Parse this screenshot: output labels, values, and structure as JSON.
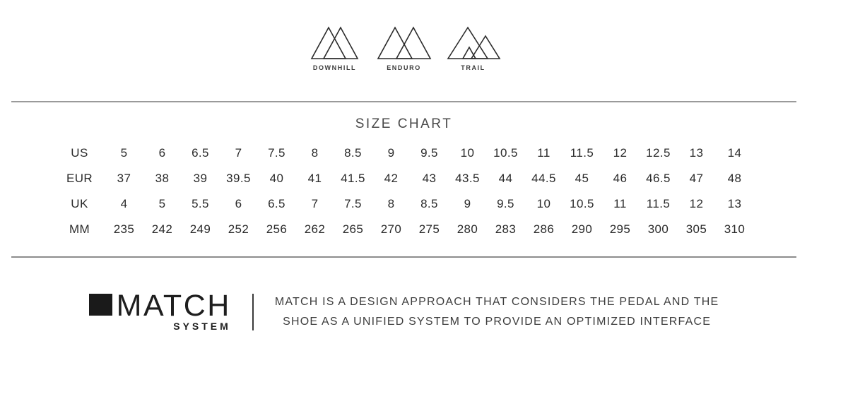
{
  "categories": [
    {
      "label": "DOWNHILL"
    },
    {
      "label": "ENDURO"
    },
    {
      "label": "TRAIL"
    }
  ],
  "chart_data": {
    "type": "table",
    "title": "SIZE CHART",
    "rows": [
      {
        "label": "US",
        "values": [
          "5",
          "6",
          "6.5",
          "7",
          "7.5",
          "8",
          "8.5",
          "9",
          "9.5",
          "10",
          "10.5",
          "11",
          "11.5",
          "12",
          "12.5",
          "13",
          "14"
        ]
      },
      {
        "label": "EUR",
        "values": [
          "37",
          "38",
          "39",
          "39.5",
          "40",
          "41",
          "41.5",
          "42",
          "43",
          "43.5",
          "44",
          "44.5",
          "45",
          "46",
          "46.5",
          "47",
          "48"
        ]
      },
      {
        "label": "UK",
        "values": [
          "4",
          "5",
          "5.5",
          "6",
          "6.5",
          "7",
          "7.5",
          "8",
          "8.5",
          "9",
          "9.5",
          "10",
          "10.5",
          "11",
          "11.5",
          "12",
          "13"
        ]
      },
      {
        "label": "MM",
        "values": [
          "235",
          "242",
          "249",
          "252",
          "256",
          "262",
          "265",
          "270",
          "275",
          "280",
          "283",
          "286",
          "290",
          "295",
          "300",
          "305",
          "310"
        ]
      }
    ]
  },
  "match_system": {
    "brand": "MATCH",
    "subtitle": "SYSTEM",
    "description_line1": "MATCH IS A DESIGN APPROACH THAT CONSIDERS THE PEDAL AND THE",
    "description_line2": "SHOE AS A UNIFIED SYSTEM TO PROVIDE AN OPTIMIZED INTERFACE"
  },
  "colors": {
    "text_primary": "#2b2b2b",
    "title_gray": "#4a4a4a",
    "divider_gray": "#9a9a9a",
    "logo_black": "#1a1a1a"
  }
}
